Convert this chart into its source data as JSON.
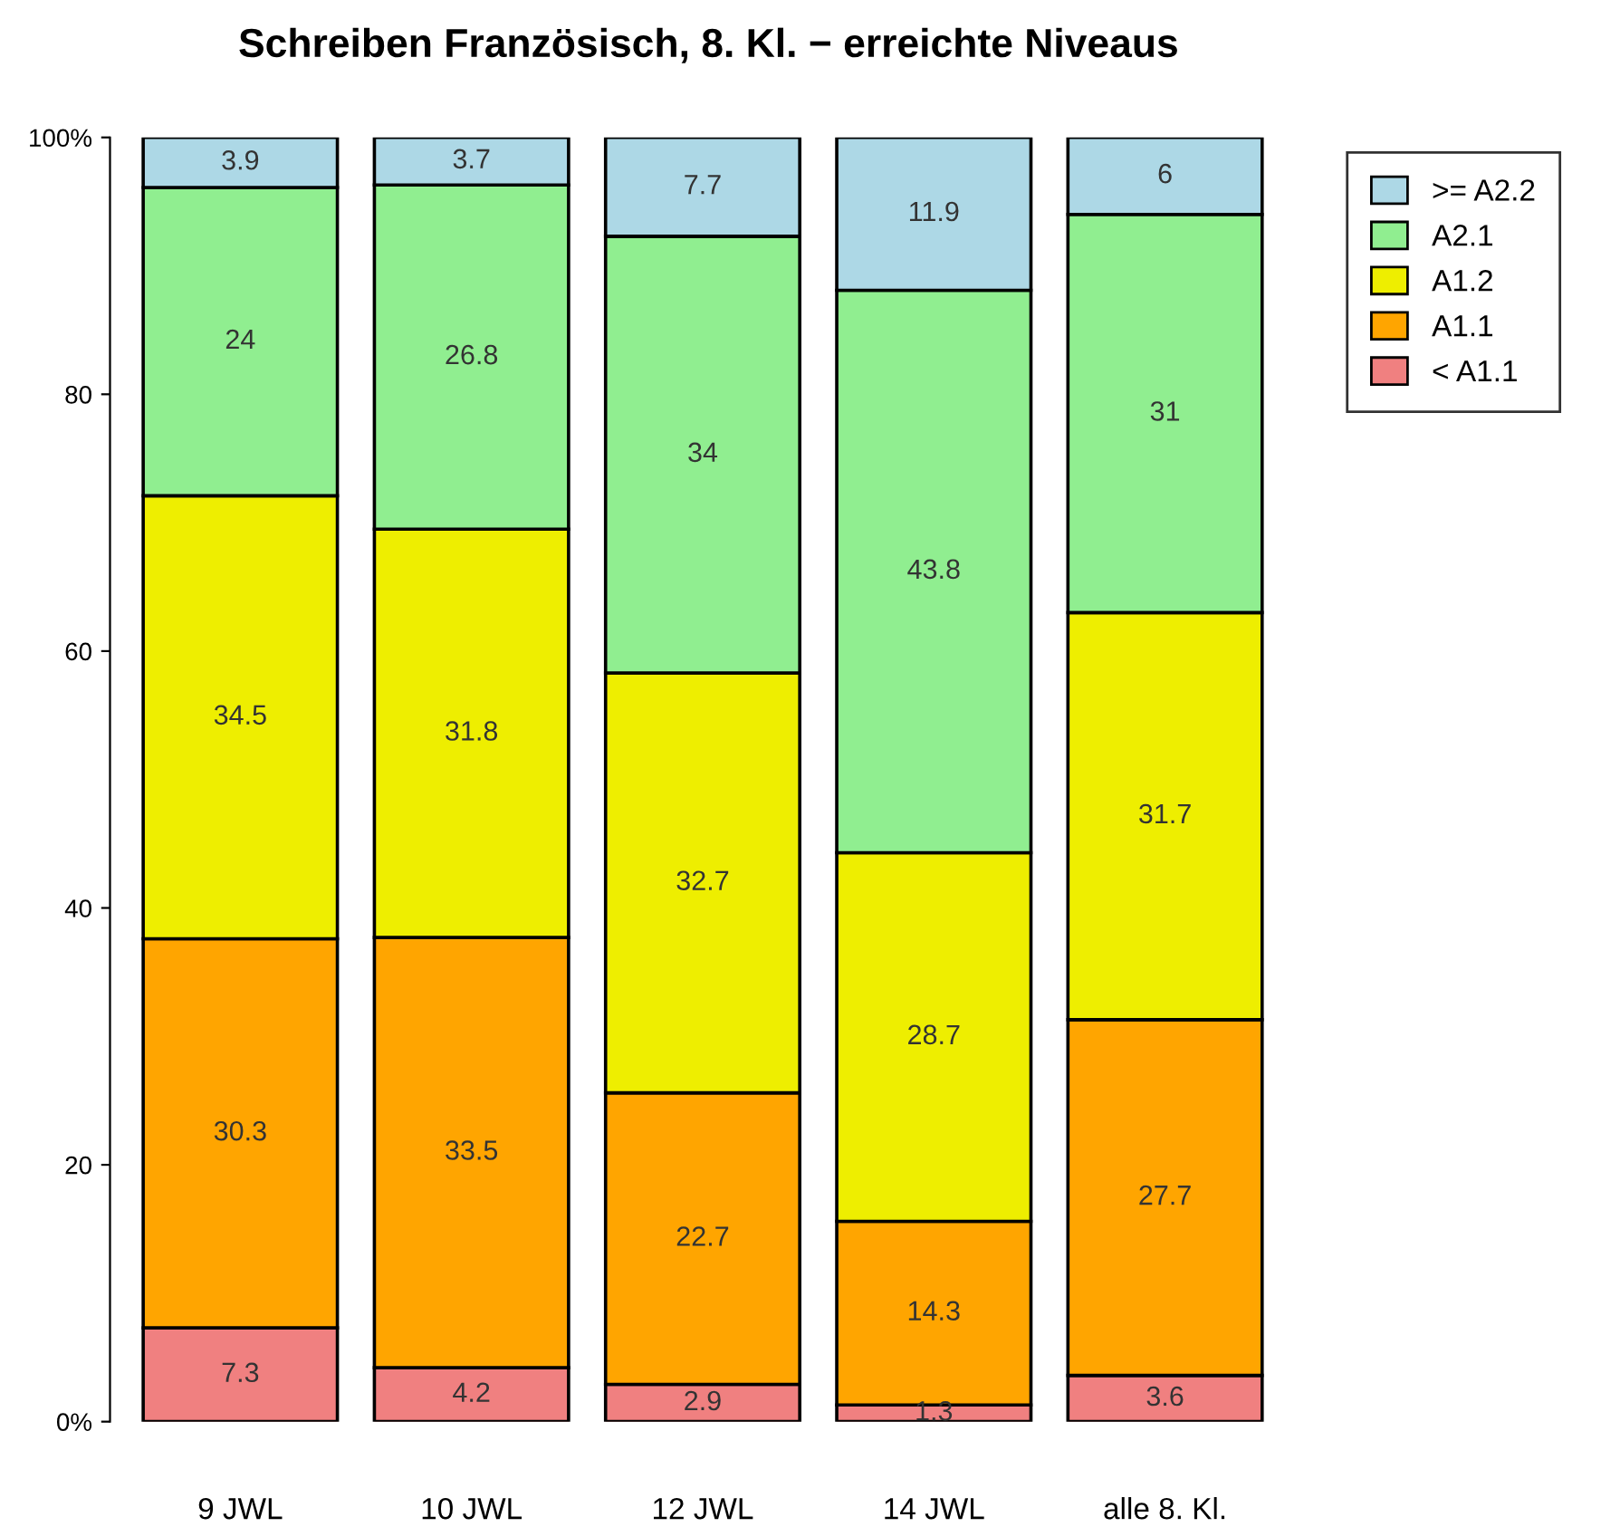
{
  "chart_data": {
    "type": "bar",
    "title": "Schreiben Französisch, 8. Kl. − erreichte Niveaus",
    "categories": [
      "9 JWL",
      "10 JWL",
      "12 JWL",
      "14 JWL",
      "alle 8. Kl."
    ],
    "stacked": true,
    "series": [
      {
        "name": "< A1.1",
        "color": "#f08080",
        "values": [
          7.3,
          4.2,
          2.9,
          1.3,
          3.6
        ]
      },
      {
        "name": "A1.1",
        "color": "#ffa500",
        "values": [
          30.3,
          33.5,
          22.7,
          14.3,
          27.7
        ]
      },
      {
        "name": "A1.2",
        "color": "#eeee00",
        "values": [
          34.5,
          31.8,
          32.7,
          28.7,
          31.7
        ]
      },
      {
        "name": "A2.1",
        "color": "#90ee90",
        "values": [
          24,
          26.8,
          34,
          43.8,
          31
        ]
      },
      {
        "name": ">= A2.2",
        "color": "#add8e6",
        "values": [
          3.9,
          3.7,
          7.7,
          11.9,
          6
        ]
      }
    ],
    "ylim": [
      0,
      100
    ],
    "yticks": [
      {
        "value": 0,
        "label": "0%"
      },
      20,
      40,
      60,
      80,
      {
        "value": 100,
        "label": "100%"
      }
    ],
    "data_labels": true,
    "legend": "right",
    "grid": false
  }
}
